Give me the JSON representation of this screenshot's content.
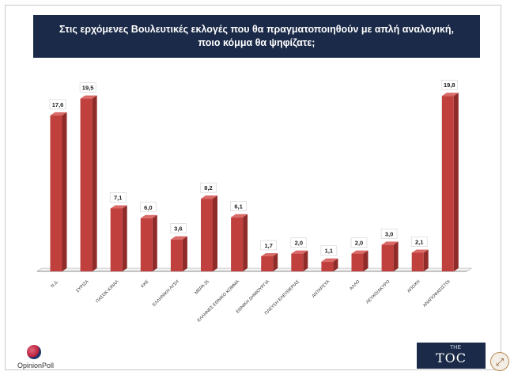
{
  "title": {
    "line1": "Στις ερχόμενες Βουλευτικές εκλογές που θα πραγματοποιηθούν με απλή αναλογική,",
    "line2": "ποιο κόμμα θα ψηφίζατε;"
  },
  "logos": {
    "opinion_poll": "OpinionPoll",
    "toc_prefix": "THE",
    "toc_name": "TOC"
  },
  "icons": {
    "expand": "expand-arrows-icon"
  },
  "colors": {
    "bar": "#c0403e",
    "bar_dark": "#8f2b29",
    "title_bg": "#1b2a48"
  },
  "chart_data": {
    "type": "bar",
    "title": "Στις ερχόμενες Βουλευτικές εκλογές που θα πραγματοποιηθούν με απλή αναλογική, ποιο κόμμα θα ψηφίζατε;",
    "categories": [
      "Ν.Δ.",
      "ΣΥΡΙΖΑ",
      "ΠΑΣΟΚ-ΚΙΝΑΛ",
      "ΚΚΕ",
      "ΕΛΛΗΝΙΚΗ ΛΥΣΗ",
      "ΜΕΡΑ 25",
      "ΕΛΛΗΝΕΣ ΕΘΝΙΚΟ ΚΟΜΜΑ",
      "ΕΘΝΙΚΗ ΔΗΜΙΟΥΡΓΙΑ",
      "ΠΛΕΥΣΗ ΕΛΕΥΘΕΡΙΑΣ",
      "ΑΝΤΑΡΣΥΑ",
      "ΑΛΛΟ",
      "ΛΕΥΚΟ/ΑΚΥΡΟ",
      "ΑΠΟΧΗ",
      "ΑΝΑΠΟΦΑΣΙΣΤΟΙ"
    ],
    "values": [
      17.6,
      19.5,
      7.1,
      6.0,
      3.6,
      8.2,
      6.1,
      1.7,
      2.0,
      1.1,
      2.0,
      3.0,
      2.1,
      19.8
    ],
    "value_labels": [
      "17,6",
      "19,5",
      "7,1",
      "6,0",
      "3,6",
      "8,2",
      "6,1",
      "1,7",
      "2,0",
      "1,1",
      "2,0",
      "3,0",
      "2,1",
      "19,8"
    ],
    "ylim": [
      0,
      20
    ],
    "grid": false,
    "legend": "none",
    "xlabel": "",
    "ylabel": ""
  }
}
